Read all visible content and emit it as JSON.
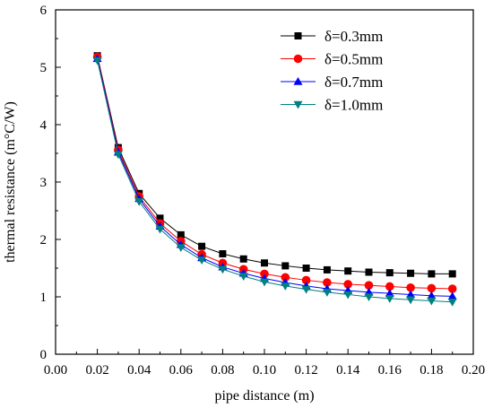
{
  "chart_data": {
    "type": "line",
    "xlabel": "pipe distance (m)",
    "ylabel": "thermal resistance (m°C/W)",
    "xlim": [
      0.0,
      0.2
    ],
    "ylim": [
      0,
      6
    ],
    "xticks": [
      "0.00",
      "0.02",
      "0.04",
      "0.06",
      "0.08",
      "0.10",
      "0.12",
      "0.14",
      "0.16",
      "0.18",
      "0.20"
    ],
    "yticks": [
      "0",
      "1",
      "2",
      "3",
      "4",
      "5",
      "6"
    ],
    "grid": false,
    "legend_position": "top-right",
    "x": [
      0.02,
      0.03,
      0.04,
      0.05,
      0.06,
      0.07,
      0.08,
      0.09,
      0.1,
      0.11,
      0.12,
      0.13,
      0.14,
      0.15,
      0.16,
      0.17,
      0.18,
      0.19
    ],
    "series": [
      {
        "name": "δ=0.3mm",
        "color": "#000000",
        "marker": "square",
        "values": [
          5.2,
          3.6,
          2.8,
          2.37,
          2.08,
          1.88,
          1.75,
          1.66,
          1.59,
          1.54,
          1.5,
          1.47,
          1.45,
          1.43,
          1.42,
          1.41,
          1.4,
          1.4
        ]
      },
      {
        "name": "δ=0.5mm",
        "color": "#ff0000",
        "marker": "circle",
        "values": [
          5.18,
          3.56,
          2.75,
          2.28,
          1.97,
          1.74,
          1.59,
          1.48,
          1.4,
          1.34,
          1.29,
          1.25,
          1.22,
          1.2,
          1.18,
          1.16,
          1.15,
          1.14
        ]
      },
      {
        "name": "δ=0.7mm",
        "color": "#0000ff",
        "marker": "triangle-up",
        "values": [
          5.15,
          3.52,
          2.71,
          2.23,
          1.91,
          1.68,
          1.52,
          1.41,
          1.32,
          1.25,
          1.19,
          1.14,
          1.11,
          1.08,
          1.06,
          1.04,
          1.02,
          1.01
        ]
      },
      {
        "name": "δ=1.0mm",
        "color": "#008080",
        "marker": "triangle-down",
        "values": [
          5.12,
          3.48,
          2.66,
          2.18,
          1.86,
          1.64,
          1.48,
          1.36,
          1.26,
          1.19,
          1.13,
          1.08,
          1.04,
          1.0,
          0.97,
          0.95,
          0.93,
          0.91
        ]
      }
    ]
  }
}
